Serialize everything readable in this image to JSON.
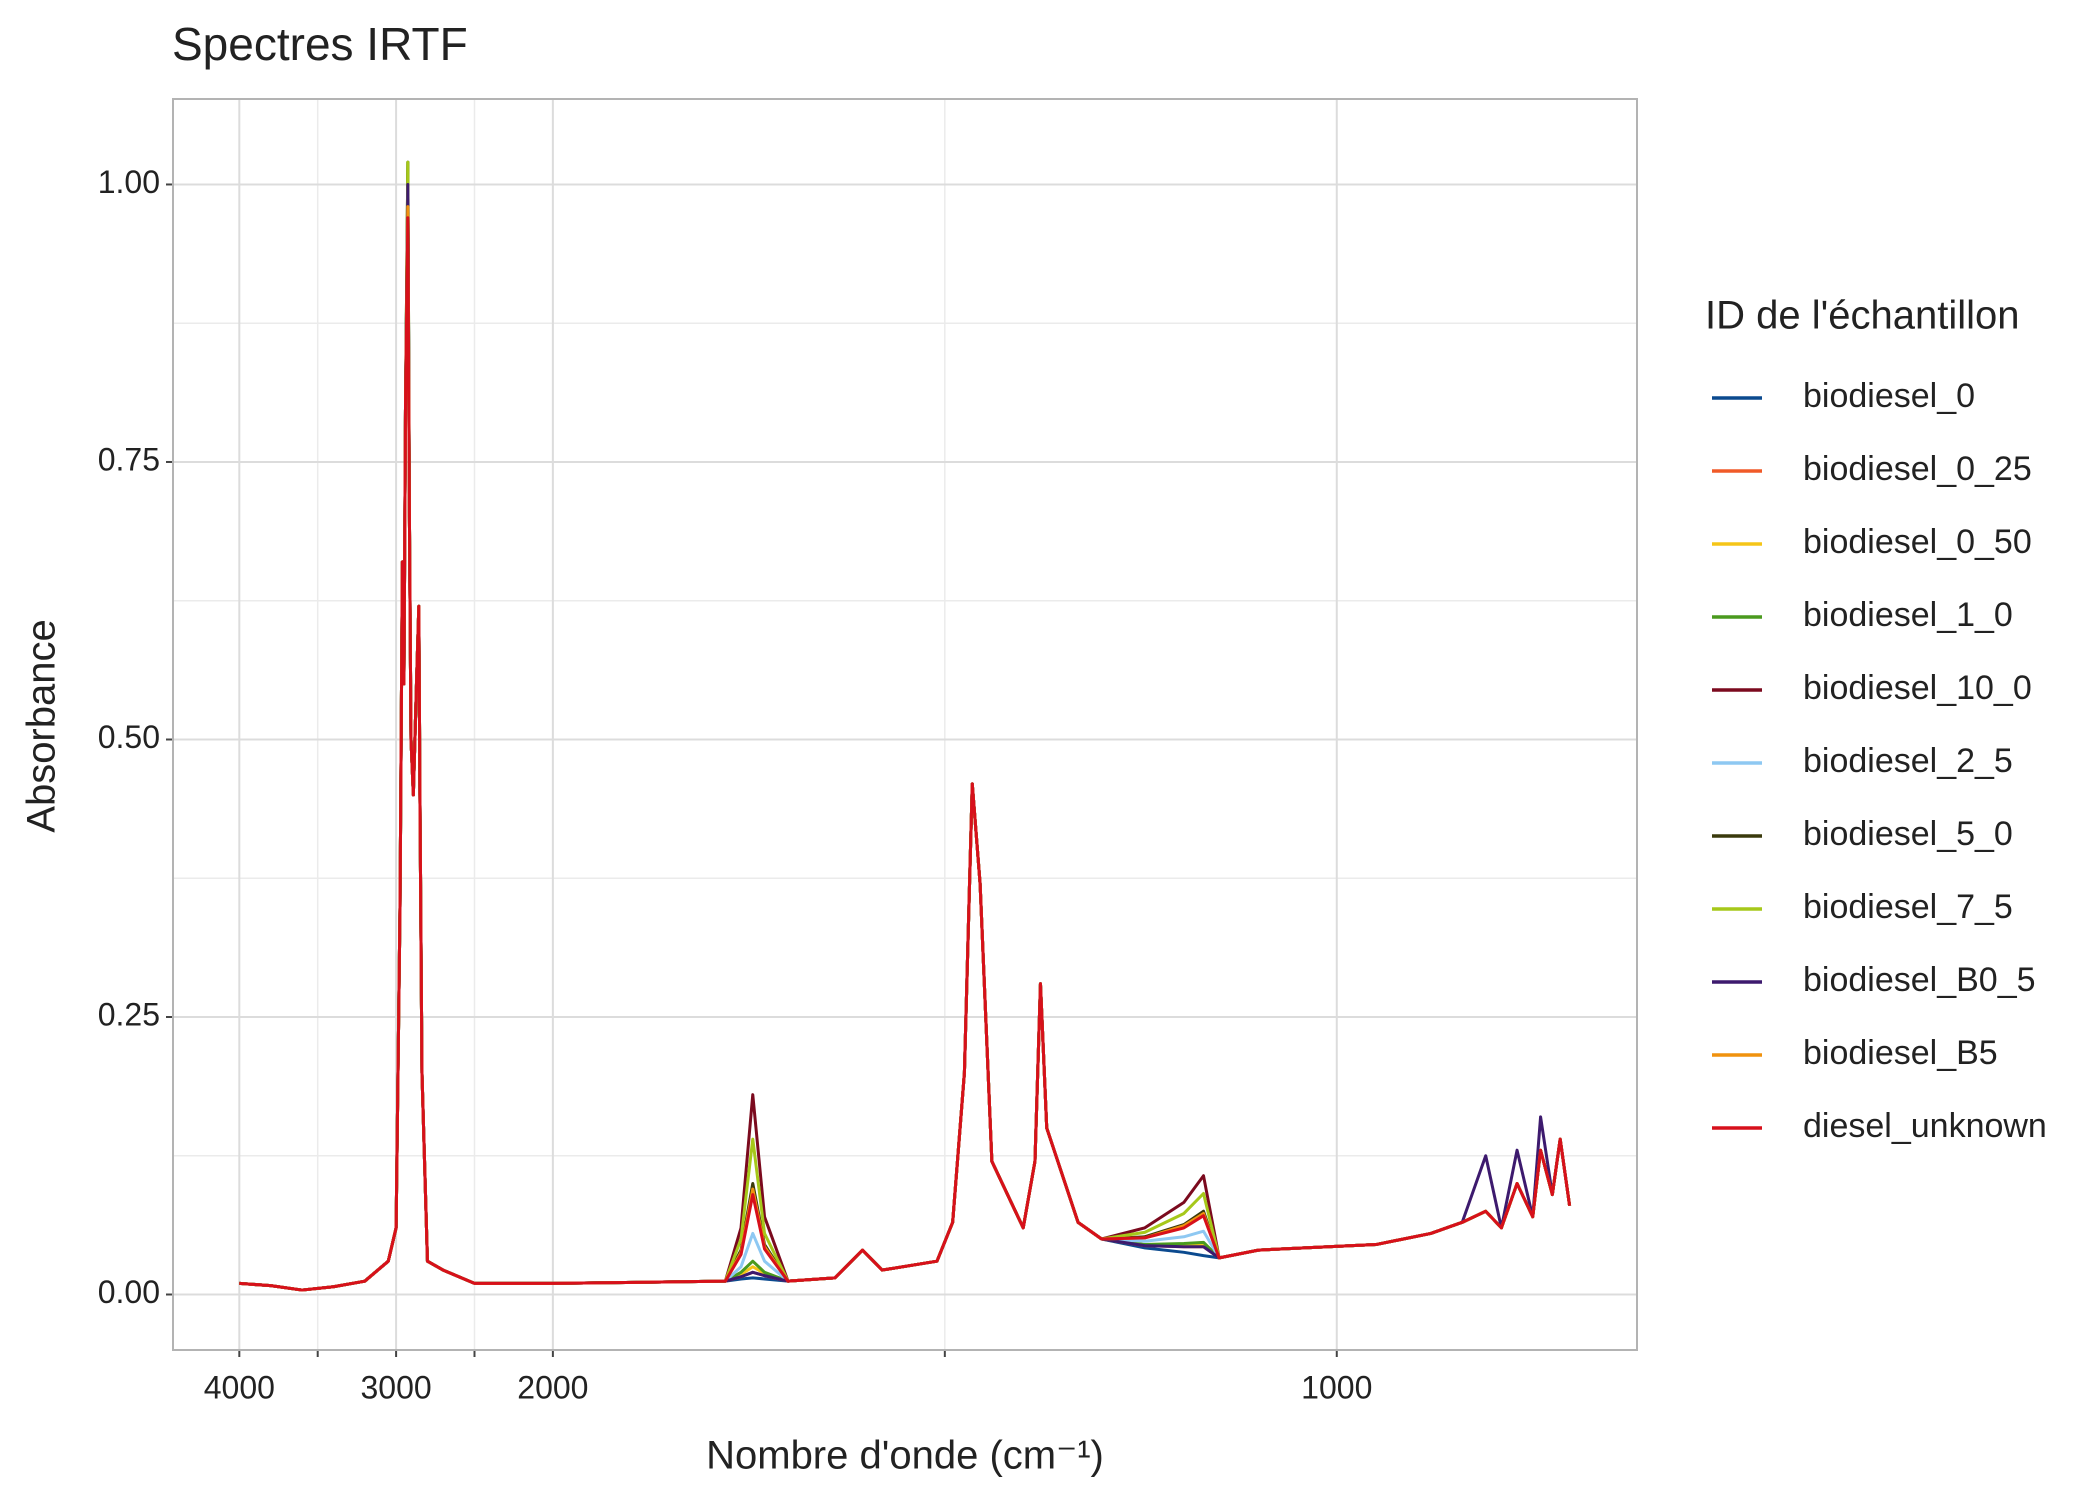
{
  "chart_data": {
    "type": "line",
    "title": "Spectres IRTF",
    "xlabel": "Nombre d'onde (cm⁻¹)",
    "ylabel": "Absorbance",
    "legend_title": "ID de l'échantillon",
    "legend": "right",
    "grid": true,
    "xscale": {
      "reverse": true,
      "break": 2000,
      "factor": 5
    },
    "xlim": [
      4423,
      617
    ],
    "xticks": [
      4000,
      3000,
      2000,
      1000
    ],
    "ylim": [
      -0.05,
      1.077
    ],
    "yticks": [
      {
        "value": 0,
        "label": "0.00"
      },
      {
        "value": 0.25,
        "label": "0.25"
      },
      {
        "value": 0.5,
        "label": "0.50"
      },
      {
        "value": 0.75,
        "label": "0.75"
      },
      {
        "value": 1,
        "label": "1.00"
      }
    ],
    "x": [
      4000,
      3800,
      3600,
      3400,
      3200,
      3050,
      3000,
      2975,
      2960,
      2950,
      2940,
      2925,
      2915,
      2905,
      2890,
      2870,
      2855,
      2848,
      2835,
      2800,
      2700,
      2500,
      2000,
      1780,
      1760,
      1745,
      1730,
      1700,
      1640,
      1605,
      1580,
      1510,
      1490,
      1475,
      1465,
      1455,
      1440,
      1400,
      1385,
      1378,
      1370,
      1330,
      1300,
      1245,
      1195,
      1170,
      1150,
      1100,
      950,
      880,
      840,
      810,
      790,
      770,
      750,
      740,
      725,
      715,
      703
    ],
    "series": [
      {
        "name": "biodiesel_0",
        "color": "#0b4a8f",
        "values": [
          0.01,
          0.008,
          0.004,
          0.007,
          0.012,
          0.03,
          0.06,
          0.35,
          0.66,
          0.55,
          0.8,
          1.0,
          0.7,
          0.5,
          0.45,
          0.55,
          0.62,
          0.45,
          0.2,
          0.03,
          0.022,
          0.01,
          0.01,
          0.012,
          0.014,
          0.015,
          0.014,
          0.012,
          0.015,
          0.04,
          0.022,
          0.03,
          0.065,
          0.2,
          0.46,
          0.37,
          0.12,
          0.06,
          0.12,
          0.28,
          0.15,
          0.065,
          0.05,
          0.042,
          0.038,
          0.035,
          0.033,
          0.04,
          0.045,
          0.055,
          0.065,
          0.075,
          0.06,
          0.1,
          0.07,
          0.13,
          0.09,
          0.14,
          0.08
        ]
      },
      {
        "name": "biodiesel_0_25",
        "color": "#f05a28",
        "values": [
          0.01,
          0.008,
          0.004,
          0.007,
          0.012,
          0.03,
          0.06,
          0.35,
          0.66,
          0.55,
          0.8,
          0.99,
          0.7,
          0.5,
          0.45,
          0.55,
          0.62,
          0.45,
          0.2,
          0.03,
          0.022,
          0.01,
          0.01,
          0.012,
          0.016,
          0.02,
          0.017,
          0.012,
          0.015,
          0.04,
          0.022,
          0.03,
          0.065,
          0.2,
          0.46,
          0.37,
          0.12,
          0.06,
          0.12,
          0.28,
          0.15,
          0.065,
          0.05,
          0.044,
          0.043,
          0.043,
          0.033,
          0.04,
          0.045,
          0.055,
          0.065,
          0.075,
          0.06,
          0.1,
          0.07,
          0.13,
          0.09,
          0.14,
          0.08
        ]
      },
      {
        "name": "biodiesel_0_50",
        "color": "#f5c518",
        "values": [
          0.01,
          0.008,
          0.004,
          0.007,
          0.012,
          0.03,
          0.06,
          0.35,
          0.66,
          0.55,
          0.8,
          0.99,
          0.7,
          0.5,
          0.45,
          0.55,
          0.62,
          0.45,
          0.2,
          0.03,
          0.022,
          0.01,
          0.01,
          0.012,
          0.018,
          0.025,
          0.019,
          0.012,
          0.015,
          0.04,
          0.022,
          0.03,
          0.065,
          0.2,
          0.46,
          0.37,
          0.12,
          0.06,
          0.12,
          0.28,
          0.15,
          0.065,
          0.05,
          0.045,
          0.044,
          0.045,
          0.033,
          0.04,
          0.045,
          0.055,
          0.065,
          0.075,
          0.06,
          0.1,
          0.07,
          0.13,
          0.09,
          0.14,
          0.08
        ]
      },
      {
        "name": "biodiesel_1_0",
        "color": "#4a9a1e",
        "values": [
          0.01,
          0.008,
          0.004,
          0.007,
          0.012,
          0.03,
          0.06,
          0.35,
          0.66,
          0.55,
          0.8,
          1.02,
          0.7,
          0.5,
          0.45,
          0.55,
          0.62,
          0.45,
          0.2,
          0.03,
          0.022,
          0.01,
          0.01,
          0.012,
          0.02,
          0.03,
          0.02,
          0.012,
          0.015,
          0.04,
          0.022,
          0.03,
          0.065,
          0.2,
          0.46,
          0.37,
          0.12,
          0.06,
          0.12,
          0.28,
          0.15,
          0.065,
          0.05,
          0.045,
          0.046,
          0.047,
          0.033,
          0.04,
          0.045,
          0.055,
          0.065,
          0.075,
          0.06,
          0.1,
          0.07,
          0.13,
          0.09,
          0.14,
          0.08
        ]
      },
      {
        "name": "biodiesel_10_0",
        "color": "#7b0a1e",
        "values": [
          0.01,
          0.008,
          0.004,
          0.007,
          0.012,
          0.03,
          0.06,
          0.35,
          0.66,
          0.55,
          0.8,
          1.0,
          0.7,
          0.5,
          0.45,
          0.55,
          0.62,
          0.45,
          0.2,
          0.03,
          0.022,
          0.01,
          0.01,
          0.012,
          0.06,
          0.18,
          0.07,
          0.012,
          0.015,
          0.04,
          0.022,
          0.03,
          0.065,
          0.2,
          0.46,
          0.37,
          0.12,
          0.06,
          0.12,
          0.28,
          0.15,
          0.065,
          0.05,
          0.06,
          0.083,
          0.107,
          0.033,
          0.04,
          0.045,
          0.055,
          0.065,
          0.075,
          0.06,
          0.1,
          0.07,
          0.13,
          0.09,
          0.14,
          0.08
        ]
      },
      {
        "name": "biodiesel_2_5",
        "color": "#8ec8f2",
        "values": [
          0.01,
          0.008,
          0.004,
          0.007,
          0.012,
          0.03,
          0.06,
          0.35,
          0.66,
          0.55,
          0.8,
          1.0,
          0.7,
          0.5,
          0.45,
          0.55,
          0.62,
          0.45,
          0.2,
          0.03,
          0.022,
          0.01,
          0.01,
          0.012,
          0.025,
          0.055,
          0.03,
          0.012,
          0.015,
          0.04,
          0.022,
          0.03,
          0.065,
          0.2,
          0.46,
          0.37,
          0.12,
          0.06,
          0.12,
          0.28,
          0.15,
          0.065,
          0.05,
          0.048,
          0.052,
          0.057,
          0.033,
          0.04,
          0.045,
          0.055,
          0.065,
          0.075,
          0.06,
          0.1,
          0.07,
          0.13,
          0.09,
          0.14,
          0.08
        ]
      },
      {
        "name": "biodiesel_5_0",
        "color": "#3a3a0c",
        "values": [
          0.01,
          0.008,
          0.004,
          0.007,
          0.012,
          0.03,
          0.06,
          0.35,
          0.66,
          0.55,
          0.8,
          1.02,
          0.7,
          0.5,
          0.45,
          0.55,
          0.62,
          0.45,
          0.2,
          0.03,
          0.022,
          0.01,
          0.01,
          0.012,
          0.04,
          0.1,
          0.045,
          0.012,
          0.015,
          0.04,
          0.022,
          0.03,
          0.065,
          0.2,
          0.46,
          0.37,
          0.12,
          0.06,
          0.12,
          0.28,
          0.15,
          0.065,
          0.05,
          0.052,
          0.063,
          0.075,
          0.033,
          0.04,
          0.045,
          0.055,
          0.065,
          0.075,
          0.06,
          0.1,
          0.07,
          0.13,
          0.09,
          0.14,
          0.08
        ]
      },
      {
        "name": "biodiesel_7_5",
        "color": "#a6c81a",
        "values": [
          0.01,
          0.008,
          0.004,
          0.007,
          0.012,
          0.03,
          0.06,
          0.35,
          0.66,
          0.55,
          0.8,
          1.02,
          0.7,
          0.5,
          0.45,
          0.55,
          0.62,
          0.45,
          0.2,
          0.03,
          0.022,
          0.01,
          0.01,
          0.012,
          0.05,
          0.14,
          0.055,
          0.012,
          0.015,
          0.04,
          0.022,
          0.03,
          0.065,
          0.2,
          0.46,
          0.37,
          0.12,
          0.06,
          0.12,
          0.28,
          0.15,
          0.065,
          0.05,
          0.056,
          0.073,
          0.091,
          0.033,
          0.04,
          0.045,
          0.055,
          0.065,
          0.075,
          0.06,
          0.1,
          0.07,
          0.13,
          0.09,
          0.14,
          0.08
        ]
      },
      {
        "name": "biodiesel_B0_5",
        "color": "#3d1a6e",
        "values": [
          0.01,
          0.008,
          0.004,
          0.007,
          0.012,
          0.03,
          0.06,
          0.35,
          0.66,
          0.55,
          0.8,
          1.0,
          0.7,
          0.5,
          0.45,
          0.55,
          0.62,
          0.45,
          0.2,
          0.03,
          0.022,
          0.01,
          0.01,
          0.012,
          0.016,
          0.02,
          0.017,
          0.012,
          0.015,
          0.04,
          0.022,
          0.03,
          0.065,
          0.2,
          0.46,
          0.37,
          0.12,
          0.06,
          0.12,
          0.28,
          0.15,
          0.065,
          0.05,
          0.044,
          0.043,
          0.043,
          0.033,
          0.04,
          0.045,
          0.055,
          0.065,
          0.125,
          0.06,
          0.13,
          0.07,
          0.16,
          0.09,
          0.14,
          0.08
        ]
      },
      {
        "name": "biodiesel_B5",
        "color": "#f0920e",
        "values": [
          0.01,
          0.008,
          0.004,
          0.007,
          0.012,
          0.03,
          0.06,
          0.35,
          0.66,
          0.55,
          0.8,
          0.98,
          0.7,
          0.5,
          0.45,
          0.55,
          0.62,
          0.45,
          0.2,
          0.03,
          0.022,
          0.01,
          0.01,
          0.012,
          0.038,
          0.095,
          0.043,
          0.012,
          0.015,
          0.04,
          0.022,
          0.03,
          0.065,
          0.2,
          0.46,
          0.37,
          0.12,
          0.06,
          0.12,
          0.28,
          0.15,
          0.065,
          0.05,
          0.051,
          0.062,
          0.073,
          0.033,
          0.04,
          0.045,
          0.055,
          0.065,
          0.075,
          0.06,
          0.1,
          0.07,
          0.13,
          0.09,
          0.14,
          0.08
        ]
      },
      {
        "name": "diesel_unknown",
        "color": "#d7101b",
        "values": [
          0.01,
          0.008,
          0.004,
          0.007,
          0.012,
          0.03,
          0.06,
          0.35,
          0.66,
          0.55,
          0.8,
          0.97,
          0.7,
          0.5,
          0.45,
          0.55,
          0.62,
          0.45,
          0.2,
          0.03,
          0.022,
          0.01,
          0.01,
          0.012,
          0.036,
          0.09,
          0.041,
          0.012,
          0.015,
          0.04,
          0.022,
          0.03,
          0.065,
          0.2,
          0.46,
          0.37,
          0.12,
          0.06,
          0.12,
          0.28,
          0.15,
          0.065,
          0.05,
          0.051,
          0.06,
          0.071,
          0.033,
          0.04,
          0.045,
          0.055,
          0.065,
          0.075,
          0.06,
          0.1,
          0.07,
          0.13,
          0.09,
          0.14,
          0.08
        ]
      }
    ]
  }
}
